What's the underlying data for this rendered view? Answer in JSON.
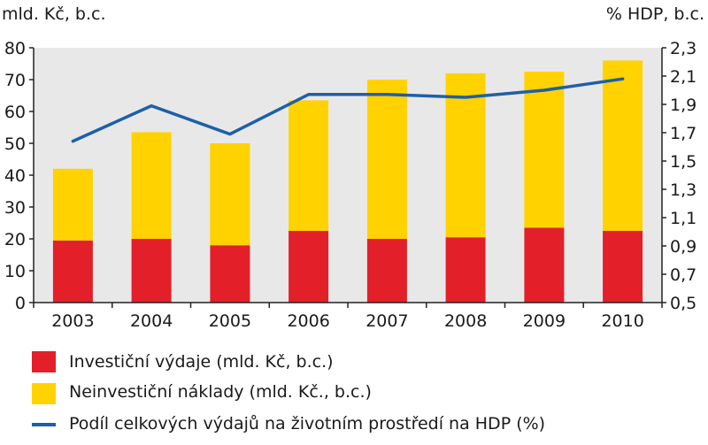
{
  "chart_data": {
    "type": "bar",
    "stacked": true,
    "categories": [
      "2003",
      "2004",
      "2005",
      "2006",
      "2007",
      "2008",
      "2009",
      "2010"
    ],
    "series": [
      {
        "name": "Investiční výdaje (mld. Kč, b.c.)",
        "axis": "left",
        "kind": "bar",
        "color": "#e3202a",
        "values": [
          19.5,
          20.0,
          18.0,
          22.5,
          20.0,
          20.5,
          23.5,
          22.5
        ]
      },
      {
        "name": "Neinvestiční náklady (mld. Kč., b.c.)",
        "axis": "left",
        "kind": "bar",
        "color": "#ffd200",
        "values": [
          22.5,
          33.5,
          32.0,
          41.0,
          50.0,
          51.5,
          49.0,
          53.5
        ]
      },
      {
        "name": "Podíl celkových výdajů na životním prostředí na HDP (%)",
        "axis": "right",
        "kind": "line",
        "color": "#1f5fa8",
        "values": [
          1.64,
          1.89,
          1.69,
          1.97,
          1.97,
          1.95,
          2.0,
          2.08
        ]
      }
    ],
    "ylabel_left": "mld. Kč, b.c.",
    "ylabel_right": "% HDP, b.c.",
    "ylim_left": [
      0,
      80
    ],
    "ylim_right": [
      0.5,
      2.3
    ],
    "yticks_left": [
      "0",
      "10",
      "20",
      "30",
      "40",
      "50",
      "60",
      "70",
      "80"
    ],
    "yticks_right": [
      "0,5",
      "0,7",
      "0,9",
      "1,1",
      "1,3",
      "1,5",
      "1,7",
      "1,9",
      "2,1",
      "2,3"
    ],
    "background": "#e8e8e8",
    "grid": false,
    "legend_position": "bottom-left"
  }
}
